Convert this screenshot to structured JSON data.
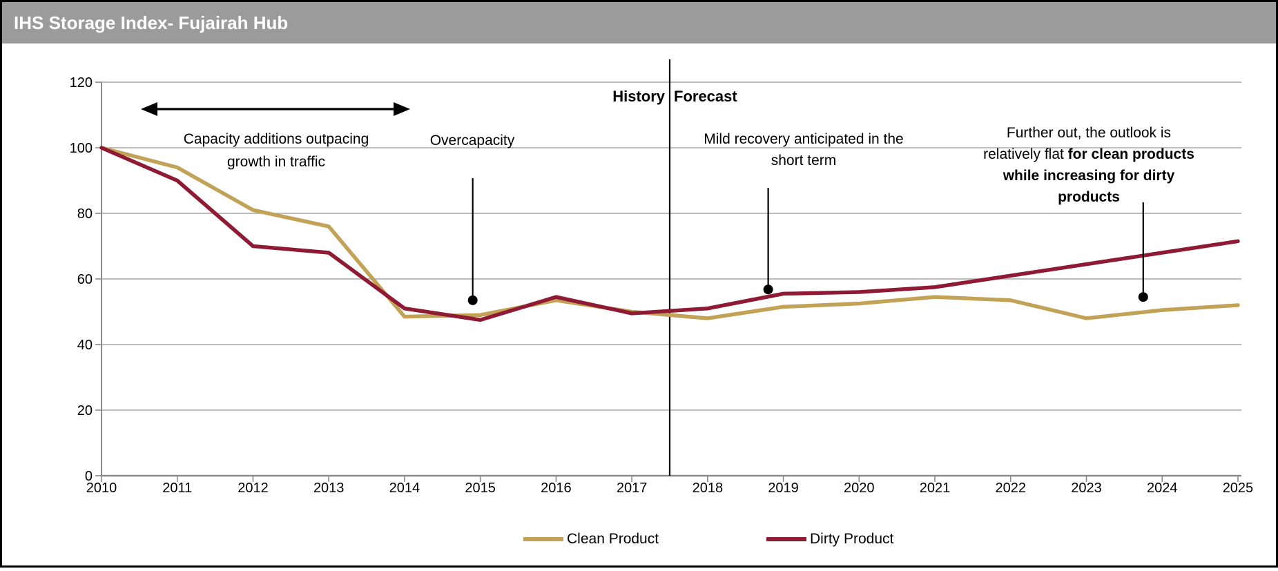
{
  "title_bar": {
    "title": "IHS Storage Index- Fujairah Hub"
  },
  "colors": {
    "titlebar_bg": "#9B9B9B",
    "titlebar_text": "#FFFFFF",
    "frame_border": "#000000",
    "grid": "#A6A6A6",
    "axis": "#8A8A8A",
    "text": "#000000",
    "clean": "#C1A257",
    "dirty": "#8E1B33",
    "callout": "#000000"
  },
  "chart_data": {
    "type": "line",
    "title": "IHS Storage Index- Fujairah Hub",
    "categories": [
      2010,
      2011,
      2012,
      2013,
      2014,
      2015,
      2016,
      2017,
      2018,
      2019,
      2020,
      2021,
      2022,
      2023,
      2024,
      2025
    ],
    "series": [
      {
        "name": "Clean Product",
        "color": "#C1A257",
        "values": [
          100,
          94,
          81,
          76,
          48.5,
          49,
          53.5,
          50,
          48,
          51.5,
          52.5,
          54.5,
          53.5,
          48,
          50.5,
          52
        ]
      },
      {
        "name": "Dirty Product",
        "color": "#8E1B33",
        "values": [
          100,
          90,
          70,
          68,
          51,
          47.5,
          54.5,
          49.5,
          51,
          55.5,
          56,
          57.5,
          61,
          64.5,
          68,
          71.5
        ]
      }
    ],
    "ylim": [
      0,
      120
    ],
    "ytick_step": 20,
    "grid": true,
    "legend_position": "bottom",
    "history_forecast_split": 2017.5
  },
  "annotations": {
    "history_label": "History",
    "forecast_label": "Forecast",
    "capacity": {
      "line1": "Capacity additions outpacing",
      "line2": "growth in traffic"
    },
    "overcapacity": {
      "label": "Overcapacity",
      "points_at": {
        "year": 2014.9,
        "value": 53.5
      }
    },
    "mild_recovery": {
      "line1": "Mild recovery anticipated in the",
      "line2": "short term",
      "points_at": {
        "year": 2018.8,
        "value": 56.8
      }
    },
    "further_out": {
      "line1": "Further out, the outlook is",
      "line2_regular": "relatively flat ",
      "line2_bold": "for clean products",
      "line3_bold": "while increasing for dirty",
      "line4_bold": "products",
      "points_at": {
        "year": 2023.75,
        "value": 54.5
      }
    }
  },
  "legend": {
    "items": [
      {
        "label": "Clean Product",
        "color": "#C1A257"
      },
      {
        "label": "Dirty Product",
        "color": "#8E1B33"
      }
    ]
  }
}
